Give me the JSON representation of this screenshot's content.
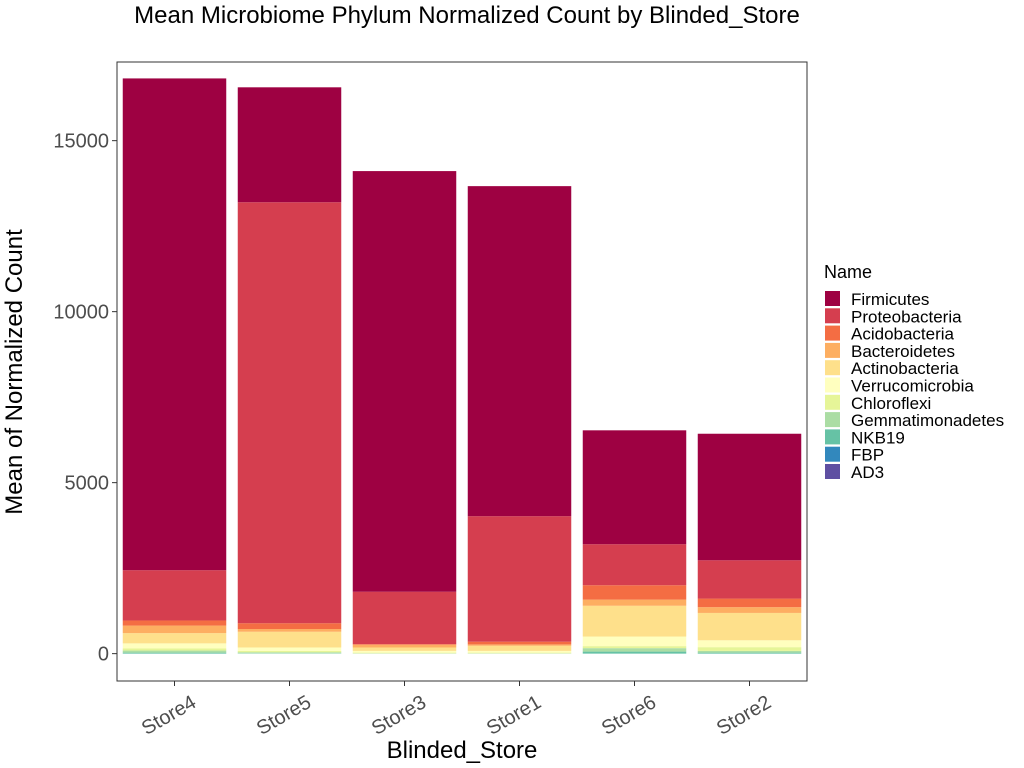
{
  "chart_data": {
    "type": "bar",
    "stacked": true,
    "title": "Mean Microbiome Phylum Normalized Count by Blinded_Store",
    "xlabel": "Blinded_Store",
    "ylabel": "Mean of Normalized Count",
    "ylim": [
      -800,
      17300
    ],
    "yticks": [
      0,
      5000,
      10000,
      15000
    ],
    "y_tick_labels": [
      "0",
      "5000",
      "10000",
      "15000"
    ],
    "grid": false,
    "legend_title": "Name",
    "legend_position": "right",
    "categories": [
      "Store4",
      "Store5",
      "Store3",
      "Store1",
      "Store6",
      "Store2"
    ],
    "series": [
      {
        "name": "Firmicutes",
        "color": "#9E0142",
        "values": [
          14380,
          3360,
          12300,
          9650,
          3330,
          3700
        ]
      },
      {
        "name": "Proteobacteria",
        "color": "#D53E4F",
        "values": [
          1470,
          12310,
          1530,
          3670,
          1200,
          1120
        ]
      },
      {
        "name": "Acidobacteria",
        "color": "#F46D43",
        "values": [
          150,
          170,
          20,
          80,
          420,
          250
        ]
      },
      {
        "name": "Bacteroidetes",
        "color": "#FDAE61",
        "values": [
          220,
          80,
          80,
          40,
          180,
          170
        ]
      },
      {
        "name": "Actinobacteria",
        "color": "#FEE08B",
        "values": [
          300,
          460,
          100,
          150,
          900,
          800
        ]
      },
      {
        "name": "Verrucomicrobia",
        "color": "#FFFFBF",
        "values": [
          150,
          100,
          50,
          50,
          280,
          200
        ]
      },
      {
        "name": "Chloroflexi",
        "color": "#E6F598",
        "values": [
          60,
          40,
          20,
          20,
          60,
          110
        ]
      },
      {
        "name": "Gemmatimonadetes",
        "color": "#ABDDA4",
        "values": [
          60,
          30,
          10,
          10,
          100,
          50
        ]
      },
      {
        "name": "NKB19",
        "color": "#66C2A5",
        "values": [
          30,
          10,
          0,
          0,
          60,
          30
        ]
      },
      {
        "name": "FBP",
        "color": "#3288BD",
        "values": [
          0,
          0,
          0,
          0,
          0,
          0
        ]
      },
      {
        "name": "AD3",
        "color": "#5E4FA2",
        "values": [
          0,
          0,
          0,
          0,
          0,
          0
        ]
      }
    ]
  }
}
